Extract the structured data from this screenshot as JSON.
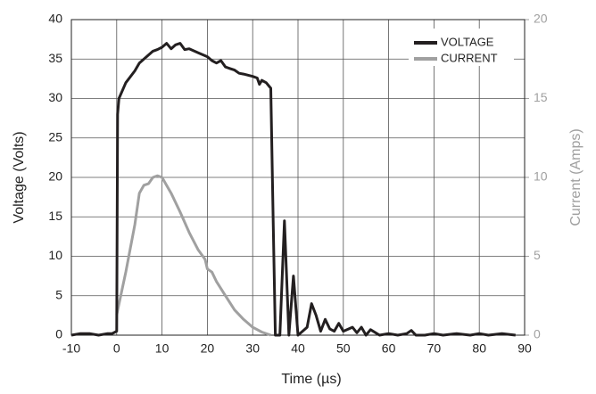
{
  "chart_data": {
    "type": "line",
    "x_label": "Time (µs)",
    "y_label": "Voltage (Volts)",
    "y2_label": "Current (Amps)",
    "xlim": [
      -10,
      90
    ],
    "xticks": [
      -10,
      0,
      10,
      20,
      30,
      40,
      50,
      60,
      70,
      80,
      90
    ],
    "ylim": [
      0,
      40
    ],
    "yticks": [
      0,
      5,
      10,
      15,
      20,
      25,
      30,
      35,
      40
    ],
    "y2lim": [
      0,
      20
    ],
    "y2ticks": [
      0,
      5,
      10,
      15,
      20
    ],
    "grid": true,
    "legend": "upper right",
    "series": [
      {
        "name": "VOLTAGE",
        "color": "#231f20",
        "x": [
          -10,
          -8,
          -6,
          -4,
          -2,
          -1,
          0,
          0.2,
          0.5,
          2,
          4,
          5,
          6,
          7,
          8,
          9,
          10,
          11,
          12,
          13,
          14,
          15,
          16,
          18,
          20,
          21,
          22,
          23,
          24,
          25,
          26,
          27,
          28,
          30,
          31,
          31.5,
          32,
          33,
          34,
          34.5,
          35,
          36,
          37,
          38,
          39,
          40,
          41,
          42,
          43,
          44,
          45,
          46,
          47,
          48,
          49,
          50,
          52,
          53,
          54,
          55,
          56,
          58,
          60,
          62,
          64,
          65,
          66,
          68,
          70,
          72,
          75,
          78,
          80,
          82,
          85,
          88
        ],
        "values": [
          0,
          0.2,
          0.2,
          0,
          0.2,
          0.2,
          0.5,
          28,
          30,
          32,
          33.5,
          34.5,
          35,
          35.5,
          36,
          36.2,
          36.5,
          37,
          36.3,
          36.8,
          37,
          36.2,
          36.3,
          35.8,
          35.3,
          34.8,
          34.5,
          34.8,
          34,
          33.8,
          33.6,
          33.2,
          33.1,
          32.8,
          32.6,
          31.8,
          32.3,
          32,
          31.3,
          15,
          0,
          0,
          14.5,
          0,
          7.5,
          0,
          0.5,
          1,
          4,
          2.5,
          0.5,
          2,
          0.8,
          0.5,
          1.5,
          0.5,
          1,
          0.3,
          1,
          0,
          0.7,
          0,
          0.2,
          0,
          0.2,
          0.6,
          0,
          0,
          0.2,
          0,
          0.2,
          0,
          0.2,
          0,
          0.2,
          0
        ]
      },
      {
        "name": "CURRENT",
        "color": "#a0a0a0",
        "axis": "y2",
        "x": [
          0,
          2,
          4,
          5,
          6,
          7,
          8,
          9,
          10,
          12,
          14,
          16,
          18,
          19.5,
          20,
          21,
          22,
          24,
          26,
          28,
          30,
          32,
          34
        ],
        "values": [
          1.3,
          4,
          7,
          9,
          9.5,
          9.6,
          10,
          10.1,
          10,
          9,
          7.8,
          6.5,
          5.4,
          4.8,
          4.2,
          4,
          3.4,
          2.5,
          1.6,
          1,
          0.5,
          0.2,
          0
        ]
      }
    ]
  }
}
